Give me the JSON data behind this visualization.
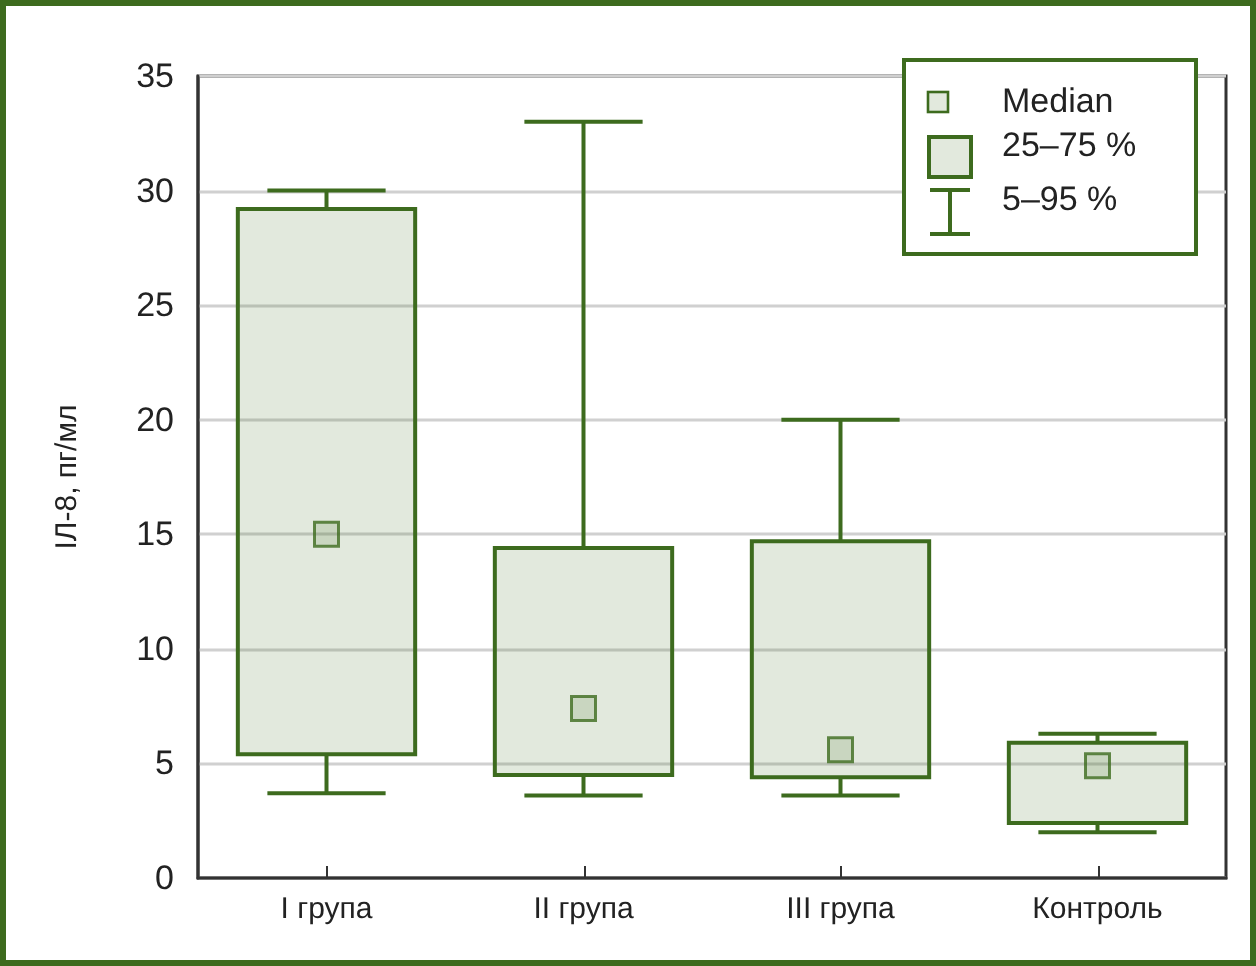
{
  "chart_data": {
    "type": "box",
    "ylabel": "ІЛ-8, пг/мл",
    "categories": [
      "I група",
      "II група",
      "III група",
      "Контроль"
    ],
    "ylim": [
      0,
      35
    ],
    "yticks": [
      0,
      5,
      10,
      15,
      20,
      25,
      30,
      35
    ],
    "grid": "y",
    "legend": "top right",
    "marker": "square",
    "annotations": [
      "Median",
      "5–95 %"
    ],
    "series": [
      {
        "name": "25–75 %",
        "color": "#3d6b1e",
        "boxes": [
          {
            "low": 3.7,
            "q1": 5.4,
            "median": 15,
            "q3": 29.2,
            "high": 30
          },
          {
            "low": 3.6,
            "q1": 4.5,
            "median": 7.4,
            "q3": 14.4,
            "high": 33
          },
          {
            "low": 3.6,
            "q1": 4.4,
            "median": 5.6,
            "q3": 14.7,
            "high": 20
          },
          {
            "low": 2,
            "q1": 2.4,
            "median": 4.9,
            "q3": 5.9,
            "high": 6.3
          }
        ]
      }
    ]
  }
}
